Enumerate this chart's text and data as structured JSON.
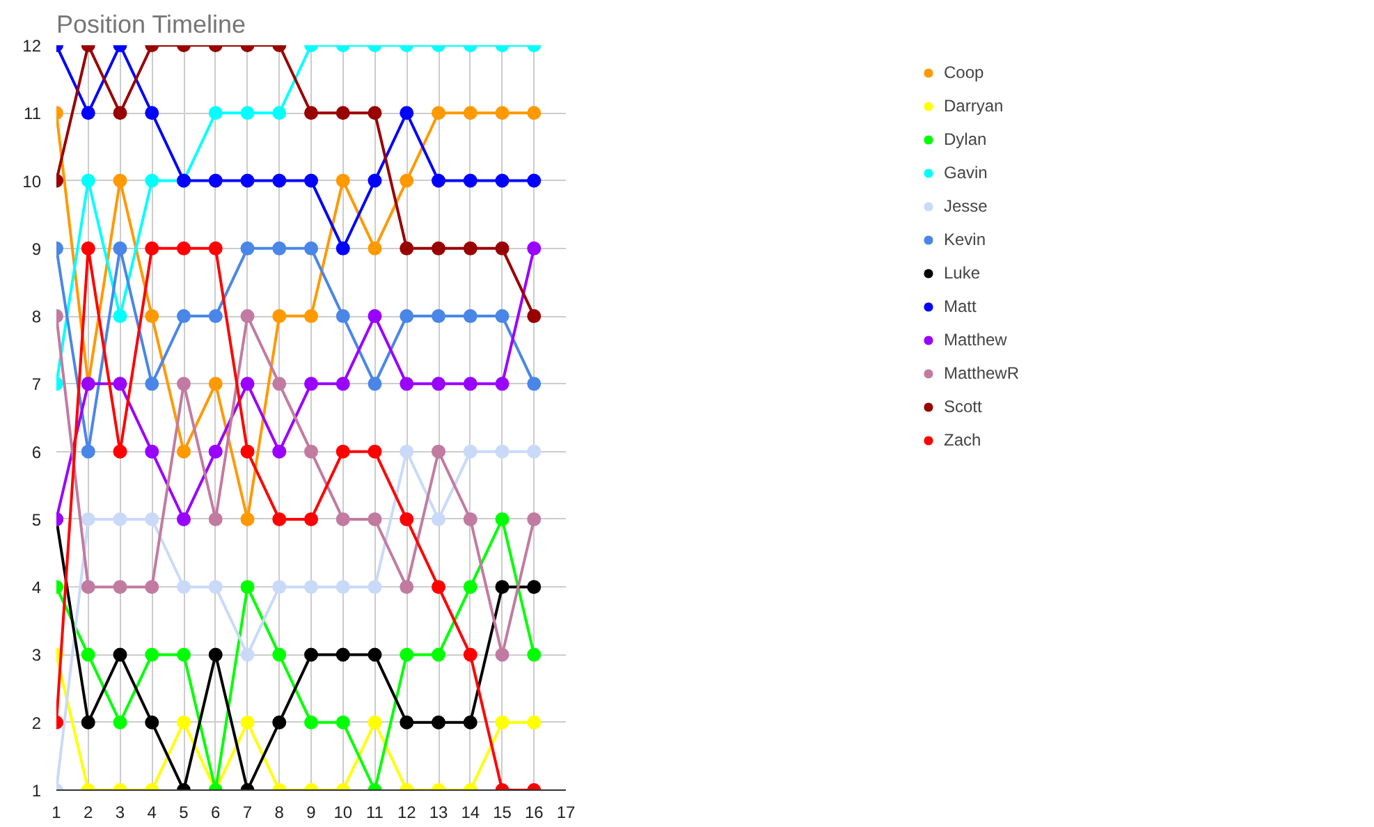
{
  "chart_data": {
    "type": "line",
    "title": "Position Timeline",
    "x": [
      1,
      2,
      3,
      4,
      5,
      6,
      7,
      8,
      9,
      10,
      11,
      12,
      13,
      14,
      15,
      16
    ],
    "xlim": [
      1,
      17
    ],
    "xticks": [
      1,
      2,
      3,
      4,
      5,
      6,
      7,
      8,
      9,
      10,
      11,
      12,
      13,
      14,
      15,
      16,
      17
    ],
    "ylim": [
      1,
      12
    ],
    "yticks": [
      1,
      2,
      3,
      4,
      5,
      6,
      7,
      8,
      9,
      10,
      11,
      12
    ],
    "grid": true,
    "legend": "top right",
    "marker": "circle",
    "line_style": "solid",
    "series": [
      {
        "name": "Coop",
        "color": "#ff9900",
        "values": [
          11,
          7,
          10,
          8,
          6,
          7,
          5,
          8,
          8,
          10,
          9,
          10,
          11,
          11,
          11,
          11
        ]
      },
      {
        "name": "Darryan",
        "color": "#ffff00",
        "values": [
          3,
          1,
          1,
          1,
          2,
          1,
          2,
          1,
          1,
          1,
          2,
          1,
          1,
          1,
          2,
          2
        ]
      },
      {
        "name": "Dylan",
        "color": "#00ff00",
        "values": [
          4,
          3,
          2,
          3,
          3,
          1,
          4,
          3,
          2,
          2,
          1,
          3,
          3,
          4,
          5,
          3
        ]
      },
      {
        "name": "Gavin",
        "color": "#00ffff",
        "values": [
          7,
          10,
          8,
          10,
          10,
          11,
          11,
          11,
          12,
          12,
          12,
          12,
          12,
          12,
          12,
          12
        ]
      },
      {
        "name": "Jesse",
        "color": "#c9daf8",
        "values": [
          1,
          5,
          5,
          5,
          4,
          4,
          3,
          4,
          4,
          4,
          4,
          6,
          5,
          6,
          6,
          6
        ]
      },
      {
        "name": "Kevin",
        "color": "#4a86e8",
        "values": [
          9,
          6,
          9,
          7,
          8,
          8,
          9,
          9,
          9,
          8,
          7,
          8,
          8,
          8,
          8,
          7
        ]
      },
      {
        "name": "Luke",
        "color": "#000000",
        "values": [
          5,
          2,
          3,
          2,
          1,
          3,
          1,
          2,
          3,
          3,
          3,
          2,
          2,
          2,
          4,
          4
        ]
      },
      {
        "name": "Matt",
        "color": "#0000ff",
        "values": [
          12,
          11,
          12,
          11,
          10,
          10,
          10,
          10,
          10,
          9,
          10,
          11,
          10,
          10,
          10,
          10
        ]
      },
      {
        "name": "Matthew",
        "color": "#9900ff",
        "values": [
          5,
          7,
          7,
          6,
          5,
          6,
          7,
          6,
          7,
          7,
          8,
          7,
          7,
          7,
          7,
          9
        ]
      },
      {
        "name": "MatthewR",
        "color": "#c27ba0",
        "values": [
          8,
          4,
          4,
          4,
          7,
          5,
          8,
          7,
          6,
          5,
          5,
          4,
          6,
          5,
          3,
          5
        ]
      },
      {
        "name": "Scott",
        "color": "#990000",
        "values": [
          10,
          12,
          11,
          12,
          12,
          12,
          12,
          12,
          11,
          11,
          11,
          9,
          9,
          9,
          9,
          8
        ]
      },
      {
        "name": "Zach",
        "color": "#ff0000",
        "values": [
          2,
          9,
          6,
          9,
          9,
          9,
          6,
          5,
          5,
          6,
          6,
          5,
          4,
          3,
          1,
          1
        ]
      }
    ]
  }
}
